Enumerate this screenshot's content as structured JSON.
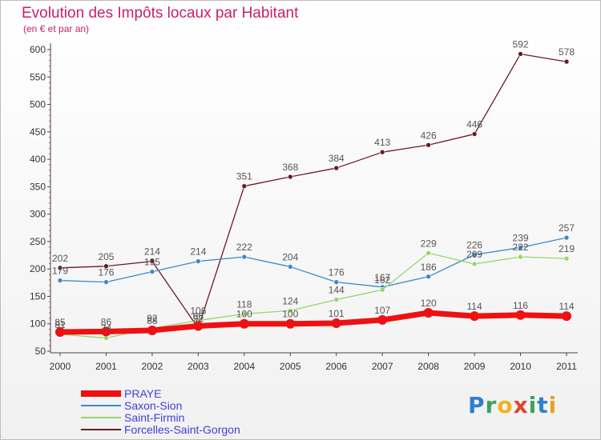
{
  "header": {
    "title": "Evolution des Impôts locaux par Habitant",
    "subtitle": "(en € et par an)"
  },
  "logo": {
    "letters": [
      "P",
      "r",
      "o",
      "x",
      "i",
      "t",
      "i"
    ],
    "colors": [
      "#2f7fd0",
      "#3aa35a",
      "#f2b21c",
      "#e2452d",
      "#3aa35a",
      "#2f7fd0",
      "#e8a21c"
    ]
  },
  "chart_data": {
    "type": "line",
    "x": [
      "2000",
      "2001",
      "2002",
      "2003",
      "2004",
      "2005",
      "2006",
      "2007",
      "2008",
      "2009",
      "2010",
      "2011"
    ],
    "ylim": [
      50,
      600
    ],
    "yticks": [
      50,
      100,
      150,
      200,
      250,
      300,
      350,
      400,
      450,
      500,
      550,
      600
    ],
    "grid": false,
    "legend_position": "bottom-left",
    "series": [
      {
        "name": "Forcelles-Saint-Gorgon",
        "color": "#6b1a24",
        "values": [
          202,
          205,
          214,
          92,
          351,
          368,
          384,
          413,
          426,
          446,
          592,
          578
        ]
      },
      {
        "name": "Saxon-Sion",
        "color": "#3d89c8",
        "values": [
          179,
          176,
          195,
          214,
          222,
          204,
          176,
          167,
          186,
          226,
          239,
          257
        ]
      },
      {
        "name": "Saint-Firmin",
        "color": "#95d66c",
        "values": [
          81,
          74,
          92,
          106,
          118,
          124,
          144,
          162,
          229,
          209,
          222,
          219
        ]
      },
      {
        "name": "PRAYE",
        "color": "#ee1111",
        "values": [
          85,
          86,
          88,
          96,
          100,
          100,
          101,
          107,
          120,
          114,
          116,
          114
        ]
      }
    ],
    "legend_order": [
      "PRAYE",
      "Saxon-Sion",
      "Saint-Firmin",
      "Forcelles-Saint-Gorgon"
    ]
  }
}
